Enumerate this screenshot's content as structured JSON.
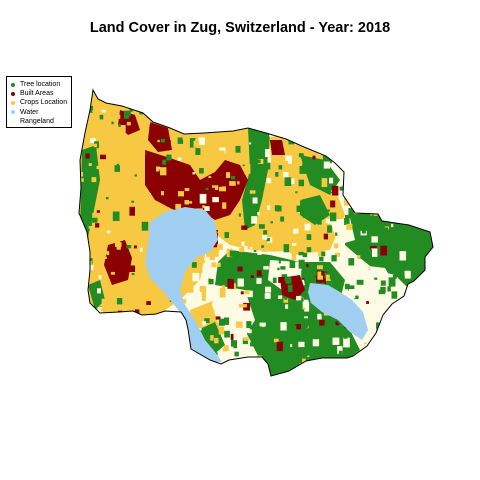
{
  "title": "Land Cover in Zug, Switzerland - Year: 2018",
  "legend": [
    {
      "label": "Tree location",
      "color": "#228b22"
    },
    {
      "label": "Built Areas",
      "color": "#8b0000"
    },
    {
      "label": "Crops Location",
      "color": "#f7c842"
    },
    {
      "label": "Water",
      "color": "#a1cff2"
    },
    {
      "label": "Rangeland",
      "color": "#fdfbe3"
    }
  ],
  "legend_placement": "top-left"
}
